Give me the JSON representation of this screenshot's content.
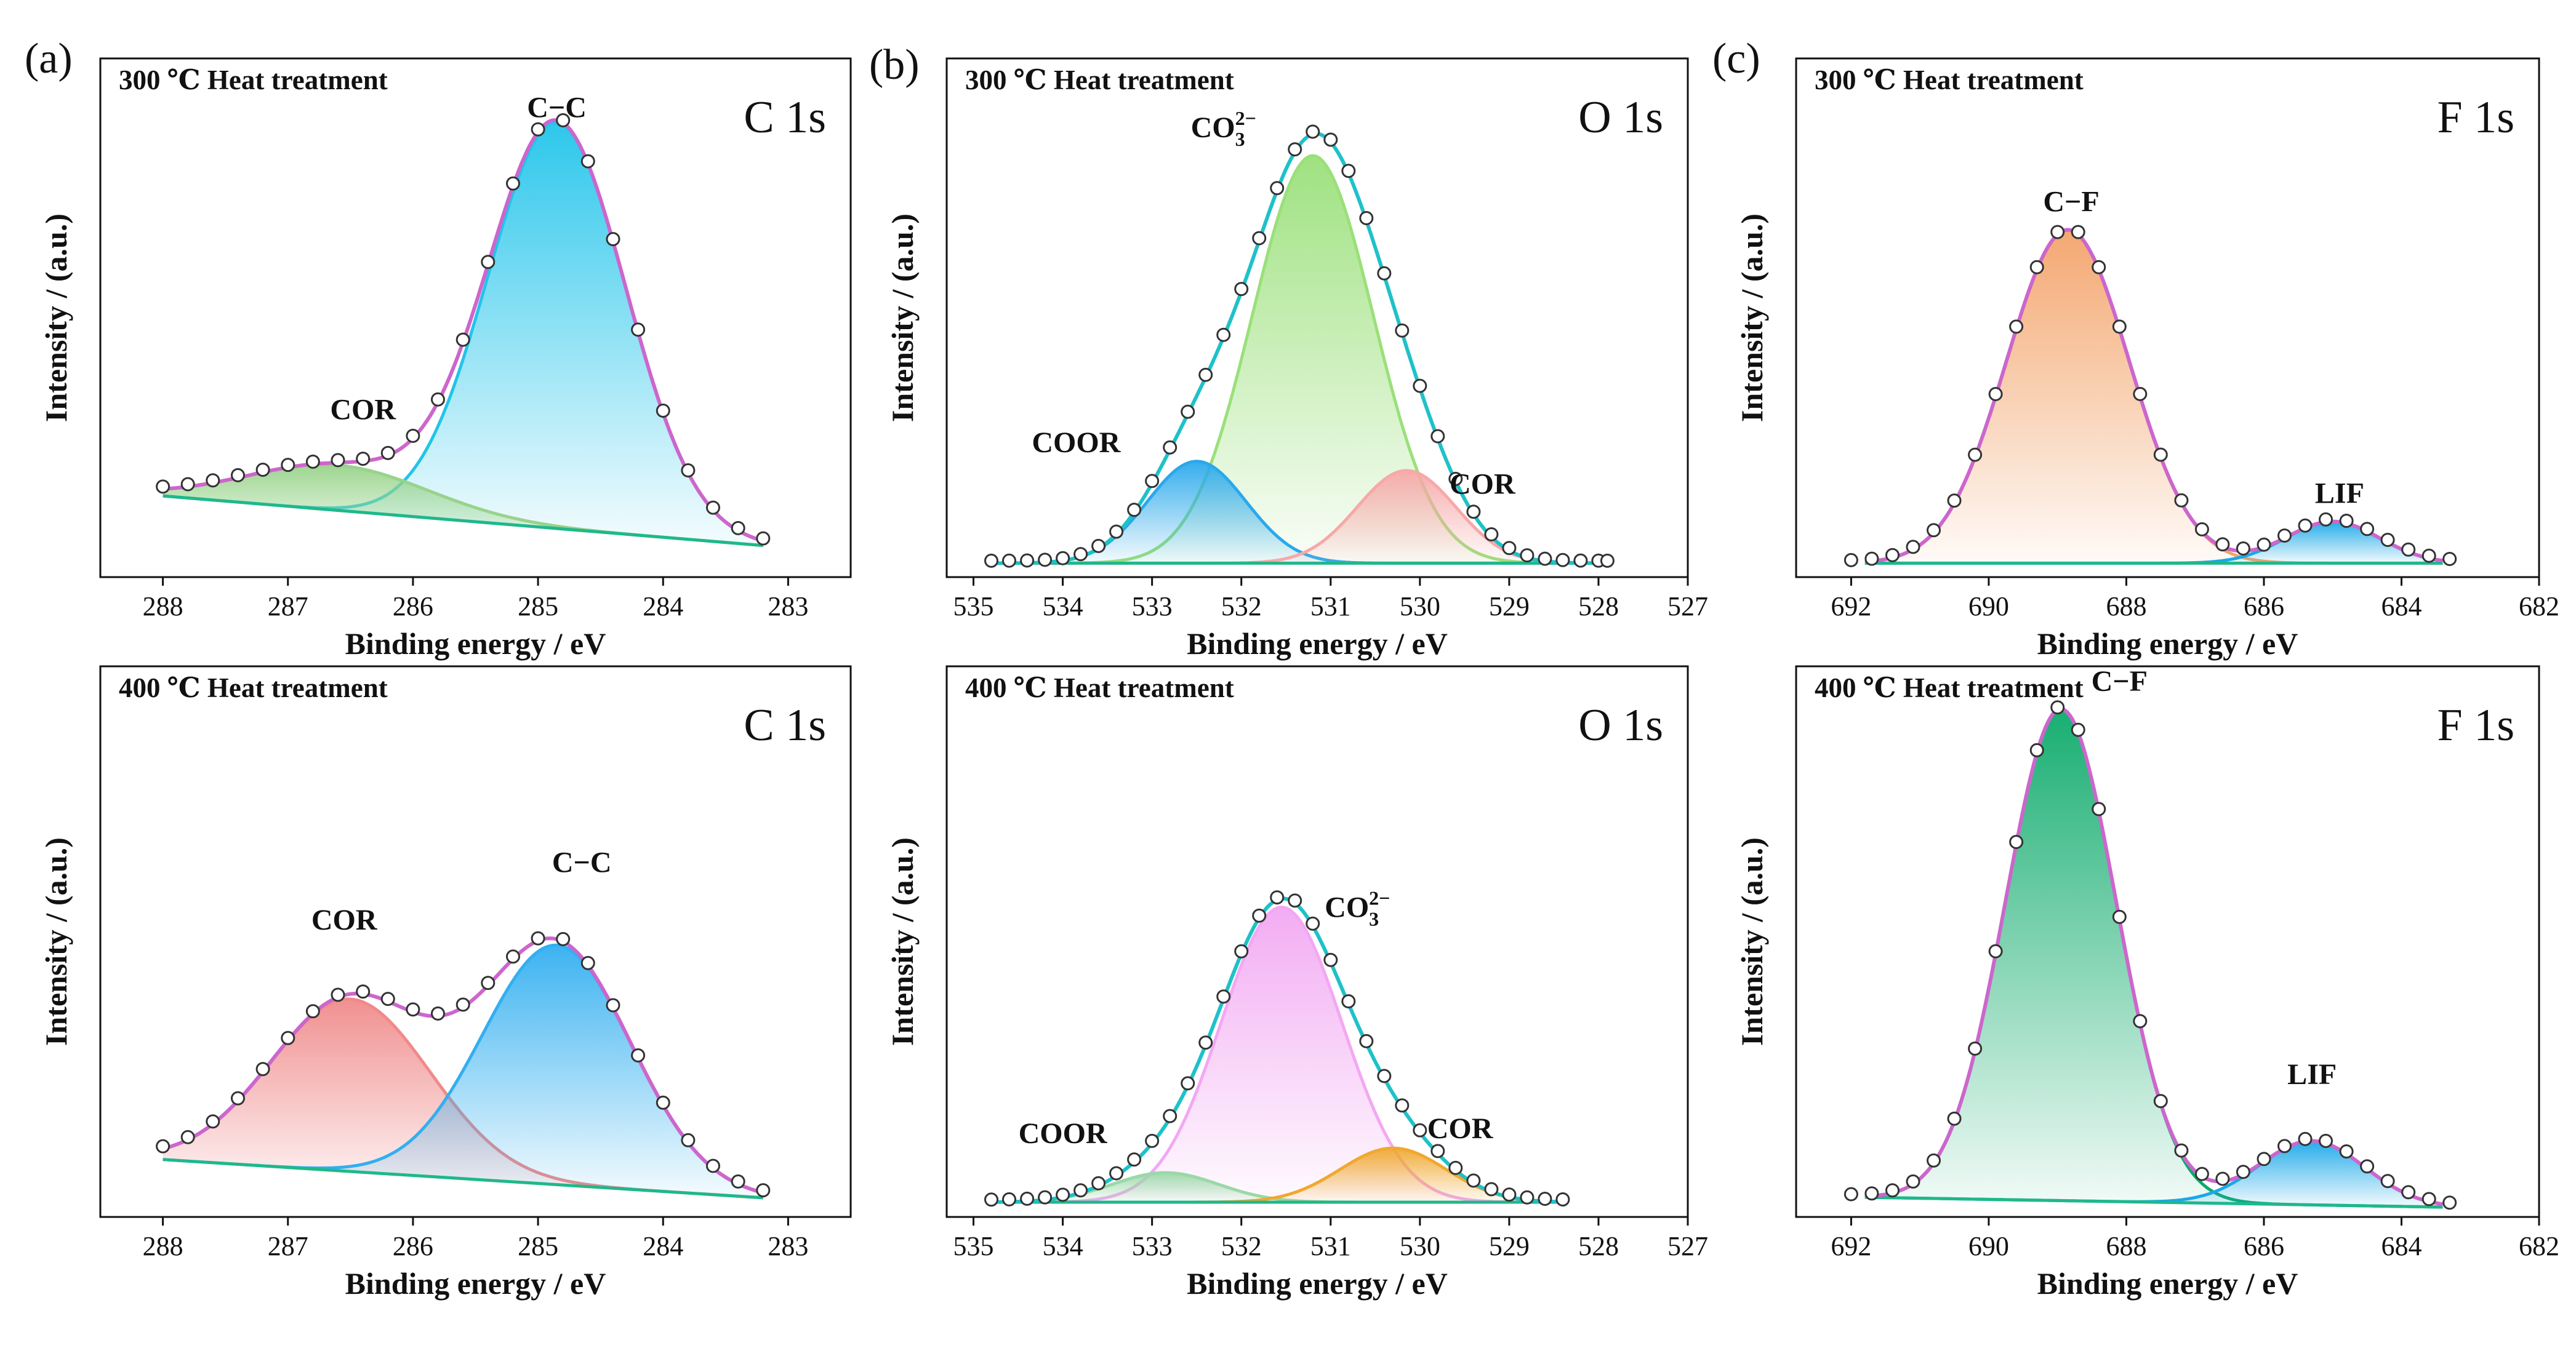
{
  "panel_labels": [
    "(a)",
    "(b)",
    "(c)"
  ],
  "colors": {
    "envelope_a": "#cc66cc",
    "envelope_b": "#1fc1c8",
    "c1s_300_cc": "#22c4ea",
    "c1s_300_cor": "#98d38a",
    "c1s_300_bg": "#e07a2e",
    "c1s_400_cor": "#f08a8a",
    "c1s_400_cc": "#32aff0",
    "o1s_300_co3": "#9ae07a",
    "o1s_300_coor": "#2aa9ec",
    "o1s_300_cor": "#f7a8a8",
    "o1s_400_co3": "#f2a8f2",
    "o1s_400_coor": "#9ad8a8",
    "o1s_400_cor": "#f0a830",
    "f1s_300_cf": "#f3a36a",
    "f1s_300_lif": "#1aa8e8",
    "f1s_400_cf": "#0caa6a",
    "f1s_400_lif": "#1aa8e8"
  },
  "chart_data": [
    {
      "type": "line",
      "panel": "(a)",
      "title": "300 ℃ Heat treatment",
      "core_level": "C 1s",
      "xlabel": "Binding energy / eV",
      "ylabel": "Intensity / (a.u.)",
      "xlim": [
        288.5,
        282.5
      ],
      "xticks": [
        288,
        287,
        286,
        285,
        284,
        283
      ],
      "ylim": [
        0,
        1.15
      ],
      "background": [
        [
          288.0,
          0.18
        ],
        [
          283.2,
          0.07
        ]
      ],
      "components": [
        {
          "name": "C−C",
          "center": 284.85,
          "fwhm": 1.3,
          "height": 0.9,
          "color_key": "c1s_300_cc"
        },
        {
          "name": "COR",
          "center": 286.6,
          "fwhm": 1.7,
          "height": 0.1,
          "color_key": "c1s_300_cor"
        }
      ],
      "labels": [
        {
          "text": "C−C",
          "x": 284.85,
          "y": 1.02
        },
        {
          "text": "COR",
          "x": 286.4,
          "y": 0.35
        }
      ],
      "envelope_color_key": "envelope_a",
      "points_x": [
        288.0,
        287.8,
        287.6,
        287.4,
        287.2,
        287.0,
        286.8,
        286.6,
        286.4,
        286.2,
        286.0,
        285.8,
        285.6,
        285.4,
        285.2,
        285.0,
        284.8,
        284.6,
        284.4,
        284.2,
        284.0,
        283.8,
        283.6,
        283.4,
        283.2
      ]
    },
    {
      "type": "line",
      "panel": "",
      "title": "400 ℃ Heat treatment",
      "core_level": "C 1s",
      "xlabel": "Binding energy / eV",
      "ylabel": "Intensity / (a.u.)",
      "xlim": [
        288.5,
        282.5
      ],
      "xticks": [
        288,
        287,
        286,
        285,
        284,
        283
      ],
      "ylim": [
        0,
        1.15
      ],
      "background": [
        [
          288.0,
          0.12
        ],
        [
          283.2,
          0.04
        ]
      ],
      "components": [
        {
          "name": "COR",
          "center": 286.5,
          "fwhm": 1.5,
          "height": 0.36,
          "color_key": "c1s_400_cor"
        },
        {
          "name": "C−C",
          "center": 284.85,
          "fwhm": 1.4,
          "height": 0.5,
          "color_key": "c1s_400_cc"
        }
      ],
      "labels": [
        {
          "text": "COR",
          "x": 286.55,
          "y": 0.6
        },
        {
          "text": "C−C",
          "x": 284.65,
          "y": 0.72
        }
      ],
      "envelope_color_key": "envelope_a",
      "points_x": [
        288.0,
        287.8,
        287.6,
        287.4,
        287.2,
        287.0,
        286.8,
        286.6,
        286.4,
        286.2,
        286.0,
        285.8,
        285.6,
        285.4,
        285.2,
        285.0,
        284.8,
        284.6,
        284.4,
        284.2,
        284.0,
        283.8,
        283.6,
        283.4,
        283.2
      ]
    },
    {
      "type": "line",
      "panel": "(b)",
      "title": "300 ℃ Heat treatment",
      "core_level": "O 1s",
      "xlabel": "Binding energy / eV",
      "ylabel": "Intensity / (a.u.)",
      "xlim": [
        535.3,
        527.0
      ],
      "xticks": [
        535,
        534,
        533,
        532,
        531,
        530,
        529,
        528,
        527
      ],
      "ylim": [
        0,
        1.12
      ],
      "background": [
        [
          534.8,
          0.03
        ],
        [
          527.9,
          0.03
        ]
      ],
      "components": [
        {
          "name": "CO₃²⁻",
          "center": 531.2,
          "fwhm": 1.6,
          "height": 0.88,
          "color_key": "o1s_300_co3"
        },
        {
          "name": "COOR",
          "center": 532.5,
          "fwhm": 1.3,
          "height": 0.22,
          "color_key": "o1s_300_coor"
        },
        {
          "name": "COR",
          "center": 530.15,
          "fwhm": 1.3,
          "height": 0.2,
          "color_key": "o1s_300_cor"
        }
      ],
      "labels": [
        {
          "text": "CO",
          "sub": "3",
          "sup": "2−",
          "x": 532.2,
          "y": 0.95
        },
        {
          "text": "COOR",
          "x": 533.85,
          "y": 0.27
        },
        {
          "text": "COR",
          "x": 529.3,
          "y": 0.18
        }
      ],
      "envelope_color_key": "envelope_b",
      "points_x": [
        534.8,
        534.6,
        534.4,
        534.2,
        534.0,
        533.8,
        533.6,
        533.4,
        533.2,
        533.0,
        532.8,
        532.6,
        532.4,
        532.2,
        532.0,
        531.8,
        531.6,
        531.4,
        531.2,
        531.0,
        530.8,
        530.6,
        530.4,
        530.2,
        530.0,
        529.8,
        529.6,
        529.4,
        529.2,
        529.0,
        528.8,
        528.6,
        528.4,
        528.2,
        528.0,
        527.9
      ]
    },
    {
      "type": "line",
      "panel": "",
      "title": "400 ℃ Heat treatment",
      "core_level": "O 1s",
      "xlabel": "Binding energy / eV",
      "ylabel": "Intensity / (a.u.)",
      "xlim": [
        535.3,
        527.0
      ],
      "xticks": [
        535,
        534,
        533,
        532,
        531,
        530,
        529,
        528,
        527
      ],
      "ylim": [
        0,
        1.12
      ],
      "background": [
        [
          534.8,
          0.03
        ],
        [
          528.4,
          0.03
        ]
      ],
      "components": [
        {
          "name": "CO₃²⁻",
          "center": 531.55,
          "fwhm": 1.6,
          "height": 0.6,
          "color_key": "o1s_400_co3"
        },
        {
          "name": "COOR",
          "center": 532.85,
          "fwhm": 1.4,
          "height": 0.06,
          "color_key": "o1s_400_coor"
        },
        {
          "name": "COR",
          "center": 530.3,
          "fwhm": 1.4,
          "height": 0.11,
          "color_key": "o1s_400_cor"
        }
      ],
      "labels": [
        {
          "text": "CO",
          "sub": "3",
          "sup": "2−",
          "x": 530.7,
          "y": 0.61
        },
        {
          "text": "COOR",
          "x": 534.0,
          "y": 0.15
        },
        {
          "text": "COR",
          "x": 529.55,
          "y": 0.16
        }
      ],
      "envelope_color_key": "envelope_b",
      "points_x": [
        534.8,
        534.6,
        534.4,
        534.2,
        534.0,
        533.8,
        533.6,
        533.4,
        533.2,
        533.0,
        532.8,
        532.6,
        532.4,
        532.2,
        532.0,
        531.8,
        531.6,
        531.4,
        531.2,
        531.0,
        530.8,
        530.6,
        530.4,
        530.2,
        530.0,
        529.8,
        529.6,
        529.4,
        529.2,
        529.0,
        528.8,
        528.6,
        528.4
      ]
    },
    {
      "type": "line",
      "panel": "(c)",
      "title": "300 ℃ Heat treatment",
      "core_level": "F 1s",
      "xlabel": "Binding energy / eV",
      "ylabel": "Intensity / (a.u.)",
      "xlim": [
        692.8,
        682.0
      ],
      "xticks": [
        692,
        690,
        688,
        686,
        684,
        682
      ],
      "ylim": [
        0,
        1.12
      ],
      "background": [
        [
          691.8,
          0.03
        ],
        [
          683.4,
          0.03
        ]
      ],
      "components": [
        {
          "name": "C−F",
          "center": 688.85,
          "fwhm": 2.1,
          "height": 0.72,
          "color_key": "f1s_300_cf"
        },
        {
          "name": "LIF",
          "center": 685.0,
          "fwhm": 1.6,
          "height": 0.09,
          "color_key": "f1s_300_lif"
        }
      ],
      "labels": [
        {
          "text": "C−F",
          "x": 688.8,
          "y": 0.79
        },
        {
          "text": "LIF",
          "x": 684.9,
          "y": 0.16
        }
      ],
      "envelope_color_key": "envelope_a",
      "points_x": [
        692.0,
        691.7,
        691.4,
        691.1,
        690.8,
        690.5,
        690.2,
        689.9,
        689.6,
        689.3,
        689.0,
        688.7,
        688.4,
        688.1,
        687.8,
        687.5,
        687.2,
        686.9,
        686.6,
        686.3,
        686.0,
        685.7,
        685.4,
        685.1,
        684.8,
        684.5,
        684.2,
        683.9,
        683.6,
        683.3
      ]
    },
    {
      "type": "line",
      "panel": "",
      "title": "400 ℃ Heat treatment",
      "core_level": "F 1s",
      "xlabel": "Binding energy / eV",
      "ylabel": "Intensity / (a.u.)",
      "xlim": [
        692.8,
        682.0
      ],
      "xticks": [
        692,
        690,
        688,
        686,
        684,
        682
      ],
      "ylim": [
        0,
        1.12
      ],
      "background": [
        [
          691.8,
          0.04
        ],
        [
          683.4,
          0.02
        ]
      ],
      "components": [
        {
          "name": "C−F",
          "center": 688.95,
          "fwhm": 1.9,
          "height": 1.0,
          "color_key": "f1s_400_cf"
        },
        {
          "name": "LIF",
          "center": 685.3,
          "fwhm": 1.8,
          "height": 0.13,
          "color_key": "f1s_400_lif"
        }
      ],
      "labels": [
        {
          "text": "C−F",
          "x": 688.1,
          "y": 1.07
        },
        {
          "text": "LIF",
          "x": 685.3,
          "y": 0.27
        }
      ],
      "envelope_color_key": "envelope_a",
      "points_x": [
        692.0,
        691.7,
        691.4,
        691.1,
        690.8,
        690.5,
        690.2,
        689.9,
        689.6,
        689.3,
        689.0,
        688.7,
        688.4,
        688.1,
        687.8,
        687.5,
        687.2,
        686.9,
        686.6,
        686.3,
        686.0,
        685.7,
        685.4,
        685.1,
        684.8,
        684.5,
        684.2,
        683.9,
        683.6,
        683.3
      ]
    }
  ]
}
